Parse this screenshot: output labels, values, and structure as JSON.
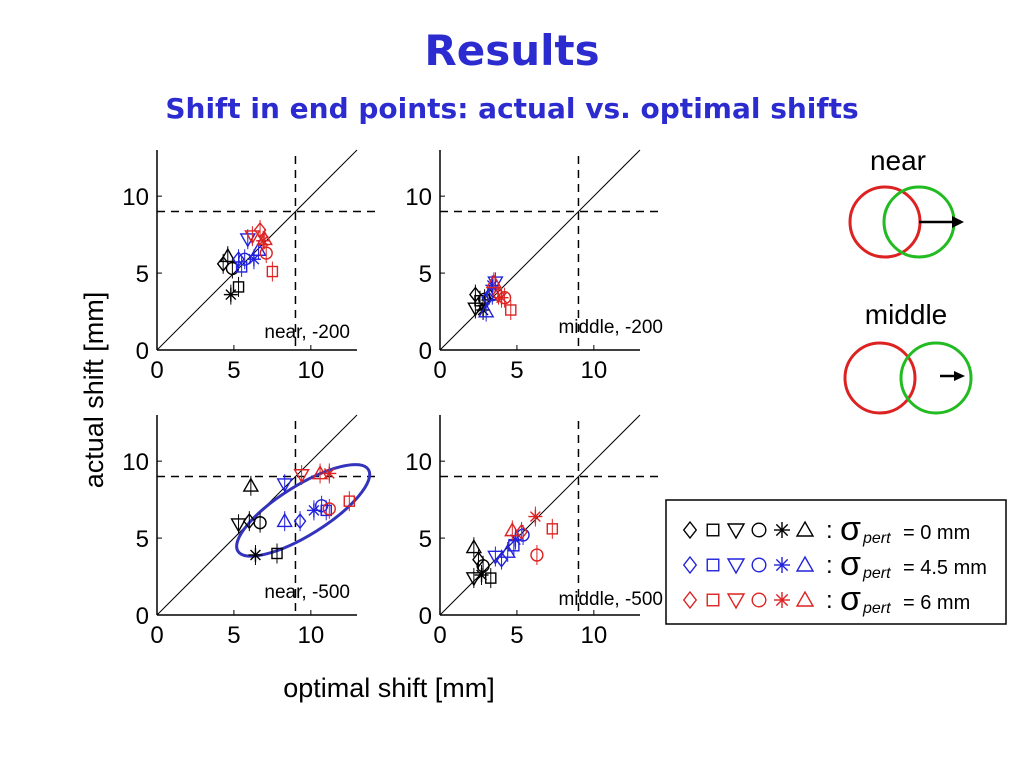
{
  "slide": {
    "title": "Results",
    "subtitle": "Shift in end points: actual vs. optimal shifts"
  },
  "axes": {
    "ylabel": "actual shift [mm]",
    "xlabel": "optimal shift [mm]",
    "xlim": [
      0,
      13
    ],
    "ylim": [
      0,
      13
    ],
    "xticks": [
      "0",
      "5",
      "10"
    ],
    "yticks": [
      "0",
      "5",
      "10"
    ],
    "reference_x": 9,
    "reference_y": 9
  },
  "colors": {
    "black": "#000000",
    "blue": "#2222dd",
    "red": "#dd2222",
    "green": "#22bb22",
    "ellipse": "#3333bb",
    "title": "#2b2bd0"
  },
  "conditions": {
    "near": "near",
    "middle": "middle"
  },
  "legend": {
    "sigma": "σ",
    "pert": "pert",
    "colon": ":",
    "rows": [
      {
        "color": "black",
        "value": "= 0 mm"
      },
      {
        "color": "blue",
        "value": "= 4.5 mm"
      },
      {
        "color": "red",
        "value": "= 6 mm"
      }
    ],
    "markers": [
      "diamond",
      "square",
      "triangle-down",
      "circle",
      "asterisk",
      "triangle-up"
    ]
  },
  "chart_data": [
    {
      "type": "scatter",
      "label": "near, -200",
      "xlim": [
        0,
        13
      ],
      "ylim": [
        0,
        13
      ],
      "points": [
        {
          "marker": "triangle-up",
          "color": "black",
          "x": 4.6,
          "y": 6.1
        },
        {
          "marker": "diamond",
          "color": "black",
          "x": 4.3,
          "y": 5.6
        },
        {
          "marker": "circle",
          "color": "black",
          "x": 4.9,
          "y": 5.3
        },
        {
          "marker": "square",
          "color": "black",
          "x": 5.3,
          "y": 4.1
        },
        {
          "marker": "asterisk",
          "color": "black",
          "x": 4.8,
          "y": 3.6
        },
        {
          "marker": "triangle-down",
          "color": "blue",
          "x": 5.9,
          "y": 7.2
        },
        {
          "marker": "diamond",
          "color": "blue",
          "x": 5.3,
          "y": 5.9
        },
        {
          "marker": "circle",
          "color": "blue",
          "x": 5.7,
          "y": 5.9
        },
        {
          "marker": "square",
          "color": "blue",
          "x": 5.5,
          "y": 5.4
        },
        {
          "marker": "asterisk",
          "color": "blue",
          "x": 6.3,
          "y": 5.9
        },
        {
          "marker": "triangle-up",
          "color": "blue",
          "x": 6.6,
          "y": 6.5
        },
        {
          "marker": "diamond",
          "color": "red",
          "x": 6.7,
          "y": 7.8
        },
        {
          "marker": "triangle-down",
          "color": "red",
          "x": 6.2,
          "y": 7.4
        },
        {
          "marker": "triangle-up",
          "color": "red",
          "x": 7.0,
          "y": 7.2
        },
        {
          "marker": "circle",
          "color": "red",
          "x": 7.1,
          "y": 6.3
        },
        {
          "marker": "square",
          "color": "red",
          "x": 7.5,
          "y": 5.1
        },
        {
          "marker": "asterisk",
          "color": "red",
          "x": 6.9,
          "y": 7.1
        }
      ]
    },
    {
      "type": "scatter",
      "label": "middle, -200",
      "xlim": [
        0,
        13
      ],
      "ylim": [
        0,
        13
      ],
      "points": [
        {
          "marker": "diamond",
          "color": "black",
          "x": 2.3,
          "y": 3.6
        },
        {
          "marker": "triangle-down",
          "color": "black",
          "x": 2.3,
          "y": 2.7
        },
        {
          "marker": "square",
          "color": "black",
          "x": 2.6,
          "y": 3.2
        },
        {
          "marker": "circle",
          "color": "black",
          "x": 2.9,
          "y": 3.3
        },
        {
          "marker": "triangle-up",
          "color": "black",
          "x": 3.2,
          "y": 3.6
        },
        {
          "marker": "asterisk",
          "color": "black",
          "x": 2.8,
          "y": 2.6
        },
        {
          "marker": "diamond",
          "color": "blue",
          "x": 3.1,
          "y": 3.4
        },
        {
          "marker": "triangle-down",
          "color": "blue",
          "x": 3.6,
          "y": 4.4
        },
        {
          "marker": "asterisk",
          "color": "blue",
          "x": 3.4,
          "y": 4.2
        },
        {
          "marker": "triangle-up",
          "color": "blue",
          "x": 3.0,
          "y": 2.5
        },
        {
          "marker": "circle",
          "color": "blue",
          "x": 3.4,
          "y": 3.6
        },
        {
          "marker": "diamond",
          "color": "red",
          "x": 3.8,
          "y": 3.6
        },
        {
          "marker": "triangle-up",
          "color": "red",
          "x": 3.5,
          "y": 4.4
        },
        {
          "marker": "circle",
          "color": "red",
          "x": 4.2,
          "y": 3.4
        },
        {
          "marker": "square",
          "color": "red",
          "x": 4.6,
          "y": 2.6
        },
        {
          "marker": "asterisk",
          "color": "red",
          "x": 4.0,
          "y": 3.4
        }
      ]
    },
    {
      "type": "scatter",
      "label": "near, -500",
      "xlim": [
        0,
        13
      ],
      "ylim": [
        0,
        13
      ],
      "ellipse": {
        "cx": 9.5,
        "cy": 6.8,
        "rx": 5.0,
        "ry": 1.6,
        "angle": 32
      },
      "points": [
        {
          "marker": "triangle-up",
          "color": "black",
          "x": 6.1,
          "y": 8.4
        },
        {
          "marker": "triangle-down",
          "color": "black",
          "x": 5.3,
          "y": 5.9
        },
        {
          "marker": "diamond",
          "color": "black",
          "x": 6.0,
          "y": 6.1
        },
        {
          "marker": "circle",
          "color": "black",
          "x": 6.7,
          "y": 6.0
        },
        {
          "marker": "asterisk",
          "color": "black",
          "x": 6.4,
          "y": 3.9
        },
        {
          "marker": "square",
          "color": "black",
          "x": 7.8,
          "y": 4.0
        },
        {
          "marker": "triangle-down",
          "color": "blue",
          "x": 8.3,
          "y": 8.5
        },
        {
          "marker": "triangle-up",
          "color": "blue",
          "x": 8.3,
          "y": 6.1
        },
        {
          "marker": "diamond",
          "color": "blue",
          "x": 9.3,
          "y": 6.1
        },
        {
          "marker": "circle",
          "color": "blue",
          "x": 10.7,
          "y": 7.1
        },
        {
          "marker": "square",
          "color": "blue",
          "x": 11.0,
          "y": 6.8
        },
        {
          "marker": "asterisk",
          "color": "blue",
          "x": 10.2,
          "y": 6.8
        },
        {
          "marker": "triangle-down",
          "color": "red",
          "x": 9.4,
          "y": 9.1
        },
        {
          "marker": "triangle-up",
          "color": "red",
          "x": 10.6,
          "y": 9.2
        },
        {
          "marker": "asterisk",
          "color": "red",
          "x": 11.2,
          "y": 9.2
        },
        {
          "marker": "circle",
          "color": "red",
          "x": 11.2,
          "y": 6.9
        },
        {
          "marker": "square",
          "color": "red",
          "x": 12.5,
          "y": 7.4
        }
      ]
    },
    {
      "type": "scatter",
      "label": "middle, -500",
      "xlim": [
        0,
        13
      ],
      "ylim": [
        0,
        13
      ],
      "points": [
        {
          "marker": "triangle-up",
          "color": "black",
          "x": 2.2,
          "y": 4.4
        },
        {
          "marker": "triangle-down",
          "color": "black",
          "x": 2.2,
          "y": 2.4
        },
        {
          "marker": "diamond",
          "color": "black",
          "x": 2.5,
          "y": 3.6
        },
        {
          "marker": "circle",
          "color": "black",
          "x": 2.8,
          "y": 3.2
        },
        {
          "marker": "square",
          "color": "black",
          "x": 3.3,
          "y": 2.4
        },
        {
          "marker": "asterisk",
          "color": "black",
          "x": 2.7,
          "y": 2.6
        },
        {
          "marker": "triangle-down",
          "color": "blue",
          "x": 3.6,
          "y": 3.8
        },
        {
          "marker": "diamond",
          "color": "blue",
          "x": 4.0,
          "y": 3.6
        },
        {
          "marker": "triangle-up",
          "color": "blue",
          "x": 4.4,
          "y": 4.1
        },
        {
          "marker": "square",
          "color": "blue",
          "x": 4.8,
          "y": 4.5
        },
        {
          "marker": "circle",
          "color": "blue",
          "x": 5.4,
          "y": 5.2
        },
        {
          "marker": "asterisk",
          "color": "blue",
          "x": 4.9,
          "y": 4.9
        },
        {
          "marker": "triangle-up",
          "color": "red",
          "x": 4.7,
          "y": 5.5
        },
        {
          "marker": "diamond",
          "color": "red",
          "x": 5.3,
          "y": 5.4
        },
        {
          "marker": "asterisk",
          "color": "red",
          "x": 6.2,
          "y": 6.4
        },
        {
          "marker": "circle",
          "color": "red",
          "x": 6.3,
          "y": 3.9
        },
        {
          "marker": "square",
          "color": "red",
          "x": 7.3,
          "y": 5.6
        }
      ]
    }
  ]
}
